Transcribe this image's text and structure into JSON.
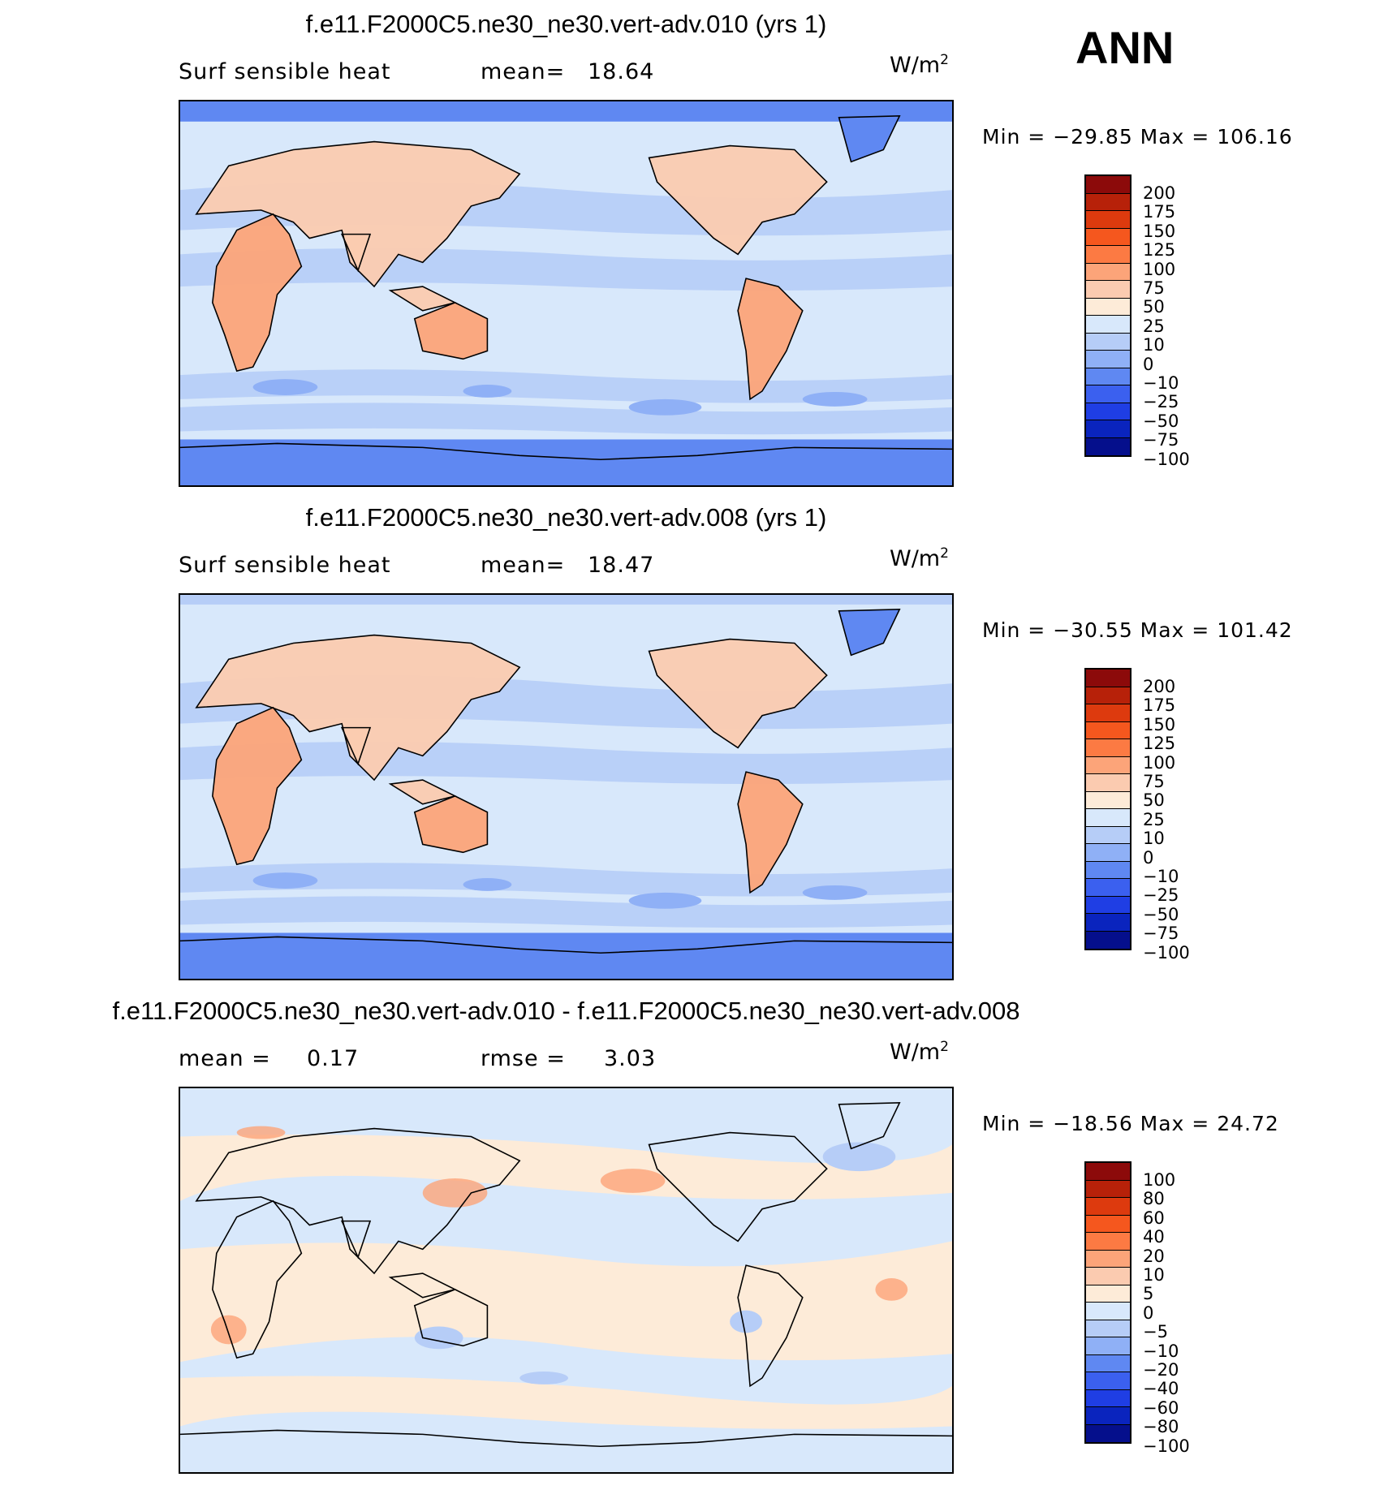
{
  "season": "ANN",
  "units_main": "W/m",
  "units_sup": "2",
  "panels": [
    {
      "title": "f.e11.F2000C5.ne30_ne30.vert-adv.010 (yrs 1)",
      "left_label": "Surf sensible heat",
      "stat_label": "mean=",
      "stat_value": "18.64",
      "minmax": "Min = −29.85 Max = 106.16",
      "colorbar": {
        "labels": [
          "200",
          "175",
          "150",
          "125",
          "100",
          "75",
          "50",
          "25",
          "10",
          "0",
          "−10",
          "−25",
          "−50",
          "−75",
          "−100"
        ],
        "colors": [
          "#8c0a0a",
          "#b72109",
          "#dd3a0e",
          "#f5571e",
          "#fc7a43",
          "#fca479",
          "#fbcbb0",
          "#fdebd8",
          "#d8e8fb",
          "#b6cdf7",
          "#8fb0f6",
          "#5f88f2",
          "#3b60ef",
          "#1f3ee4",
          "#0a24be",
          "#050f8c"
        ]
      }
    },
    {
      "title": "f.e11.F2000C5.ne30_ne30.vert-adv.008 (yrs 1)",
      "left_label": "Surf sensible heat",
      "stat_label": "mean=",
      "stat_value": "18.47",
      "minmax": "Min = −30.55 Max = 101.42",
      "colorbar": {
        "labels": [
          "200",
          "175",
          "150",
          "125",
          "100",
          "75",
          "50",
          "25",
          "10",
          "0",
          "−10",
          "−25",
          "−50",
          "−75",
          "−100"
        ],
        "colors": [
          "#8c0a0a",
          "#b72109",
          "#dd3a0e",
          "#f5571e",
          "#fc7a43",
          "#fca479",
          "#fbcbb0",
          "#fdebd8",
          "#d8e8fb",
          "#b6cdf7",
          "#8fb0f6",
          "#5f88f2",
          "#3b60ef",
          "#1f3ee4",
          "#0a24be",
          "#050f8c"
        ]
      }
    },
    {
      "title": "f.e11.F2000C5.ne30_ne30.vert-adv.010 - f.e11.F2000C5.ne30_ne30.vert-adv.008",
      "left_label": "mean =",
      "left_value": "0.17",
      "stat_label": "rmse =",
      "stat_value": "3.03",
      "minmax": "Min = −18.56 Max =  24.72",
      "colorbar": {
        "labels": [
          "100",
          "80",
          "60",
          "40",
          "20",
          "10",
          "5",
          "0",
          "−5",
          "−10",
          "−20",
          "−40",
          "−60",
          "−80",
          "−100"
        ],
        "colors": [
          "#8c0a0a",
          "#b72109",
          "#dd3a0e",
          "#f5571e",
          "#fc7a43",
          "#fca479",
          "#fbcbb0",
          "#fdebd8",
          "#d8e8fb",
          "#b6cdf7",
          "#8fb0f6",
          "#5f88f2",
          "#3b60ef",
          "#1f3ee4",
          "#0a24be",
          "#050f8c"
        ]
      }
    }
  ],
  "map_colors": {
    "ocean_main": "#d8e8fb",
    "ocean_band": "#b6cdf7",
    "ocean_deep": "#8fb0f6",
    "polar": "#5f88f2",
    "land_warm": "#fbcbb0",
    "land_hot": "#fca479",
    "diff_ocean": "#d8e8fb",
    "diff_pos": "#fdebd8",
    "diff_neg": "#b6cdf7",
    "diff_strong_pos": "#fca479",
    "diff_strong_neg": "#8fb0f6"
  }
}
